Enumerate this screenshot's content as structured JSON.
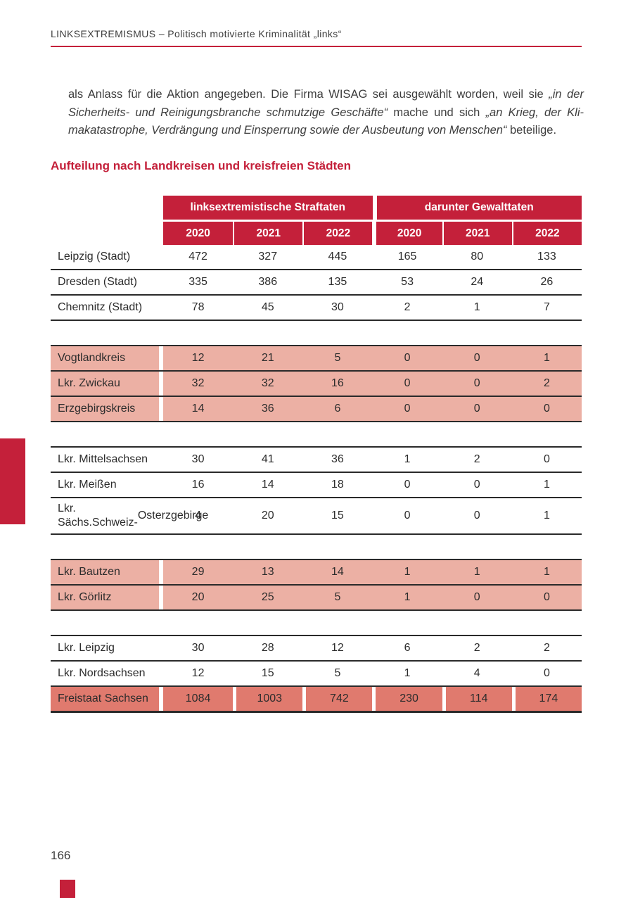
{
  "page": {
    "running_header": "LINKSEXTREMISMUS – Politisch motivierte Kriminalität „links“",
    "page_number": "166"
  },
  "paragraph": {
    "lines": [
      {
        "segments": [
          {
            "t": "als Anlass für die Aktion angegeben. Die Firma WISAG sei ausgewählt worden, weil sie ",
            "i": false
          },
          {
            "t": "„in der",
            "i": true
          }
        ]
      },
      {
        "segments": [
          {
            "t": "Sicherheits- und Reinigungsbranche schmutzige Geschäfte“",
            "i": true
          },
          {
            "t": " mache und sich ",
            "i": false
          },
          {
            "t": "„an Krieg, der Kli-",
            "i": true
          }
        ]
      },
      {
        "segments": [
          {
            "t": "makatastrophe, Verdrängung und Einsperrung sowie der Ausbeutung von Menschen“",
            "i": true
          },
          {
            "t": " beteilige.",
            "i": false
          }
        ]
      }
    ]
  },
  "section_heading": "Aufteilung nach Landkreisen und kreisfreien Städten",
  "table": {
    "group_headers": [
      "linksextremistische Straftaten",
      "darunter Gewalttaten"
    ],
    "year_headers": [
      "2020",
      "2021",
      "2022",
      "2020",
      "2021",
      "2022"
    ],
    "groups": [
      {
        "style": "plain",
        "rows": [
          {
            "label_lines": [
              "Leipzig (Stadt)"
            ],
            "values": [
              "472",
              "327",
              "445",
              "165",
              "80",
              "133"
            ]
          },
          {
            "label_lines": [
              "Dresden (Stadt)"
            ],
            "values": [
              "335",
              "386",
              "135",
              "53",
              "24",
              "26"
            ]
          },
          {
            "label_lines": [
              "Chemnitz (Stadt)"
            ],
            "values": [
              "78",
              "45",
              "30",
              "2",
              "1",
              "7"
            ]
          }
        ]
      },
      {
        "style": "pink",
        "rows": [
          {
            "label_lines": [
              "Vogtlandkreis"
            ],
            "values": [
              "12",
              "21",
              "5",
              "0",
              "0",
              "1"
            ]
          },
          {
            "label_lines": [
              "Lkr. Zwickau"
            ],
            "values": [
              "32",
              "32",
              "16",
              "0",
              "0",
              "2"
            ]
          },
          {
            "label_lines": [
              "Erzgebirgskreis"
            ],
            "values": [
              "14",
              "36",
              "6",
              "0",
              "0",
              "0"
            ]
          }
        ]
      },
      {
        "style": "plain",
        "rows": [
          {
            "label_lines": [
              "Lkr. Mittelsachsen"
            ],
            "values": [
              "30",
              "41",
              "36",
              "1",
              "2",
              "0"
            ]
          },
          {
            "label_lines": [
              "Lkr. Meißen"
            ],
            "values": [
              "16",
              "14",
              "18",
              "0",
              "0",
              "1"
            ]
          },
          {
            "label_lines": [
              "Lkr. Sächs.Schweiz-",
              "Osterzgebirge"
            ],
            "values": [
              "4",
              "20",
              "15",
              "0",
              "0",
              "1"
            ]
          }
        ]
      },
      {
        "style": "pink",
        "rows": [
          {
            "label_lines": [
              "Lkr. Bautzen"
            ],
            "values": [
              "29",
              "13",
              "14",
              "1",
              "1",
              "1"
            ]
          },
          {
            "label_lines": [
              "Lkr. Görlitz"
            ],
            "values": [
              "20",
              "25",
              "5",
              "1",
              "0",
              "0"
            ]
          }
        ]
      },
      {
        "style": "plain",
        "rows": [
          {
            "label_lines": [
              "Lkr. Leipzig"
            ],
            "values": [
              "30",
              "28",
              "12",
              "6",
              "2",
              "2"
            ]
          },
          {
            "label_lines": [
              "Lkr. Nordsachsen"
            ],
            "values": [
              "12",
              "15",
              "5",
              "1",
              "4",
              "0"
            ]
          }
        ]
      }
    ],
    "total_row": {
      "label_lines": [
        "Freistaat Sachsen"
      ],
      "values": [
        "1084",
        "1003",
        "742",
        "230",
        "114",
        "174"
      ]
    }
  },
  "colors": {
    "accent_red": "#C4203A",
    "row_pink": "#ECB0A4",
    "total_pink": "#E07A6E",
    "text": "#3D3D3D"
  }
}
